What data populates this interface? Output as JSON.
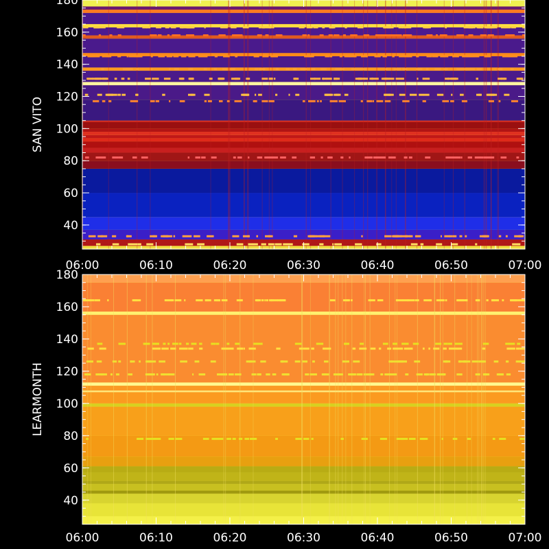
{
  "chart_data": [
    {
      "type": "heatmap",
      "station": "SAN VITO",
      "ylabel": "SAN VITO",
      "xlabel": "",
      "xlim": [
        "06:00",
        "07:00"
      ],
      "ylim": [
        25,
        180
      ],
      "x_tick_labels": [
        "06:00",
        "06:10",
        "06:20",
        "06:30",
        "06:40",
        "06:50",
        "07:00"
      ],
      "y_ticks": [
        40,
        60,
        80,
        100,
        120,
        140,
        160,
        180
      ],
      "y_tick_labels": [
        "40",
        "60",
        "80",
        "100",
        "120",
        "140",
        "160",
        "180"
      ],
      "bands": [
        {
          "from": 25,
          "to": 27,
          "color": "#f0e040"
        },
        {
          "from": 27,
          "to": 31,
          "color": "#b01818"
        },
        {
          "from": 31,
          "to": 37,
          "color": "#3a1fc8"
        },
        {
          "from": 37,
          "to": 45,
          "color": "#1f2ee8"
        },
        {
          "from": 45,
          "to": 60,
          "color": "#0a22c0"
        },
        {
          "from": 60,
          "to": 75,
          "color": "#0a1a9e"
        },
        {
          "from": 75,
          "to": 80,
          "color": "#8a0e1e"
        },
        {
          "from": 80,
          "to": 85,
          "color": "#a01616"
        },
        {
          "from": 85,
          "to": 88,
          "color": "#c81f1f"
        },
        {
          "from": 88,
          "to": 92,
          "color": "#b01010"
        },
        {
          "from": 92,
          "to": 94,
          "color": "#e02a1a"
        },
        {
          "from": 94,
          "to": 96,
          "color": "#c01818"
        },
        {
          "from": 96,
          "to": 98,
          "color": "#e03020"
        },
        {
          "from": 98,
          "to": 100,
          "color": "#b01414"
        },
        {
          "from": 100,
          "to": 104,
          "color": "#9a1010"
        },
        {
          "from": 104,
          "to": 105,
          "color": "#d02a20"
        },
        {
          "from": 105,
          "to": 118,
          "color": "#3a1880"
        },
        {
          "from": 118,
          "to": 127,
          "color": "#4a1a88"
        },
        {
          "from": 127,
          "to": 129,
          "color": "#fff6a0"
        },
        {
          "from": 129,
          "to": 136,
          "color": "#4a1a8a"
        },
        {
          "from": 136,
          "to": 138,
          "color": "#ff9a20"
        },
        {
          "from": 138,
          "to": 145,
          "color": "#4a1a8c"
        },
        {
          "from": 145,
          "to": 147,
          "color": "#ff8a18"
        },
        {
          "from": 147,
          "to": 156,
          "color": "#4a1a8c"
        },
        {
          "from": 156,
          "to": 158,
          "color": "#e05a20"
        },
        {
          "from": 158,
          "to": 163,
          "color": "#4c1a90"
        },
        {
          "from": 163,
          "to": 165,
          "color": "#ffe040"
        },
        {
          "from": 165,
          "to": 172,
          "color": "#4c1a90"
        },
        {
          "from": 172,
          "to": 174,
          "color": "#ff7a20"
        },
        {
          "from": 174,
          "to": 176,
          "color": "#6a1a70"
        },
        {
          "from": 176,
          "to": 180,
          "color": "#f0f050"
        }
      ],
      "bursts": [
        {
          "y": 163,
          "color": "#ffd040"
        },
        {
          "y": 158,
          "color": "#ff7020"
        },
        {
          "y": 145,
          "color": "#ff9020"
        },
        {
          "y": 137,
          "color": "#ffa030"
        },
        {
          "y": 131,
          "color": "#ffb040"
        },
        {
          "y": 121,
          "color": "#ffc040"
        },
        {
          "y": 117,
          "color": "#ff8030"
        },
        {
          "y": 82,
          "color": "#ff6060"
        },
        {
          "y": 33,
          "color": "#ffa040"
        },
        {
          "y": 28,
          "color": "#ffe060"
        }
      ]
    },
    {
      "type": "heatmap",
      "station": "LEARMONTH",
      "ylabel": "LEARMONTH",
      "xlabel": "",
      "xlim": [
        "06:00",
        "07:00"
      ],
      "ylim": [
        25,
        180
      ],
      "x_tick_labels": [
        "06:00",
        "06:10",
        "06:20",
        "06:30",
        "06:40",
        "06:50",
        "07:00"
      ],
      "y_ticks": [
        40,
        60,
        80,
        100,
        120,
        140,
        160,
        180
      ],
      "y_tick_labels": [
        "40",
        "60",
        "80",
        "100",
        "120",
        "140",
        "160",
        "180"
      ],
      "bands": [
        {
          "from": 25,
          "to": 30,
          "color": "#f4f048"
        },
        {
          "from": 30,
          "to": 38,
          "color": "#e8e438"
        },
        {
          "from": 38,
          "to": 44,
          "color": "#d8d430"
        },
        {
          "from": 44,
          "to": 46,
          "color": "#a09a10"
        },
        {
          "from": 46,
          "to": 50,
          "color": "#c8c020"
        },
        {
          "from": 50,
          "to": 52,
          "color": "#b0a818"
        },
        {
          "from": 52,
          "to": 57,
          "color": "#c0b418"
        },
        {
          "from": 57,
          "to": 61,
          "color": "#b8ac14"
        },
        {
          "from": 61,
          "to": 67,
          "color": "#e8a010"
        },
        {
          "from": 67,
          "to": 80,
          "color": "#f49a14"
        },
        {
          "from": 80,
          "to": 98,
          "color": "#f8a01a"
        },
        {
          "from": 98,
          "to": 100,
          "color": "#d8d020"
        },
        {
          "from": 100,
          "to": 107,
          "color": "#fb9a20"
        },
        {
          "from": 107,
          "to": 108,
          "color": "#ffe880"
        },
        {
          "from": 108,
          "to": 111,
          "color": "#fb9a24"
        },
        {
          "from": 111,
          "to": 113,
          "color": "#fff890"
        },
        {
          "from": 113,
          "to": 155,
          "color": "#fa8c30"
        },
        {
          "from": 155,
          "to": 157,
          "color": "#fff070"
        },
        {
          "from": 157,
          "to": 175,
          "color": "#fa8034"
        },
        {
          "from": 175,
          "to": 180,
          "color": "#ffa050"
        }
      ],
      "bursts": [
        {
          "y": 164,
          "color": "#ffe040"
        },
        {
          "y": 137,
          "color": "#e8e020"
        },
        {
          "y": 134,
          "color": "#ffe040"
        },
        {
          "y": 126,
          "color": "#f0e030"
        },
        {
          "y": 118,
          "color": "#f0e030"
        },
        {
          "y": 78,
          "color": "#e8e020"
        }
      ]
    }
  ]
}
